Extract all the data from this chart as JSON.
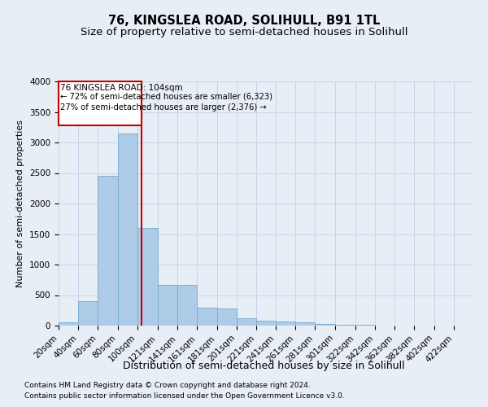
{
  "title": "76, KINGSLEA ROAD, SOLIHULL, B91 1TL",
  "subtitle": "Size of property relative to semi-detached houses in Solihull",
  "xlabel": "Distribution of semi-detached houses by size in Solihull",
  "ylabel": "Number of semi-detached properties",
  "footnote1": "Contains HM Land Registry data © Crown copyright and database right 2024.",
  "footnote2": "Contains public sector information licensed under the Open Government Licence v3.0.",
  "property_size": 104,
  "property_label": "76 KINGSLEA ROAD: 104sqm",
  "pct_smaller": 72,
  "count_smaller": 6323,
  "pct_larger": 27,
  "count_larger": 2376,
  "bin_labels": [
    "20sqm",
    "40sqm",
    "60sqm",
    "80sqm",
    "100sqm",
    "121sqm",
    "141sqm",
    "161sqm",
    "181sqm",
    "201sqm",
    "221sqm",
    "241sqm",
    "261sqm",
    "281sqm",
    "301sqm",
    "322sqm",
    "342sqm",
    "362sqm",
    "382sqm",
    "402sqm",
    "422sqm"
  ],
  "bin_edges": [
    20,
    40,
    60,
    80,
    100,
    121,
    141,
    161,
    181,
    201,
    221,
    241,
    261,
    281,
    301,
    322,
    342,
    362,
    382,
    402,
    422,
    442
  ],
  "bar_values": [
    50,
    400,
    2450,
    3150,
    1600,
    670,
    670,
    290,
    280,
    120,
    80,
    65,
    55,
    25,
    15,
    8,
    4,
    2,
    1,
    1,
    0
  ],
  "bar_color": "#aecce8",
  "bar_edge_color": "#7aafd4",
  "marker_x": 104,
  "marker_color": "#cc0000",
  "annotation_box_color": "#ffffff",
  "annotation_box_edge": "#cc0000",
  "ylim": [
    0,
    4000
  ],
  "xlim": [
    20,
    442
  ],
  "grid_color": "#c8d4e8",
  "bg_color": "#e8eef6",
  "title_fontsize": 10.5,
  "subtitle_fontsize": 9.5,
  "ylabel_fontsize": 8,
  "xlabel_fontsize": 9,
  "tick_fontsize": 7.5,
  "footnote_fontsize": 6.5
}
